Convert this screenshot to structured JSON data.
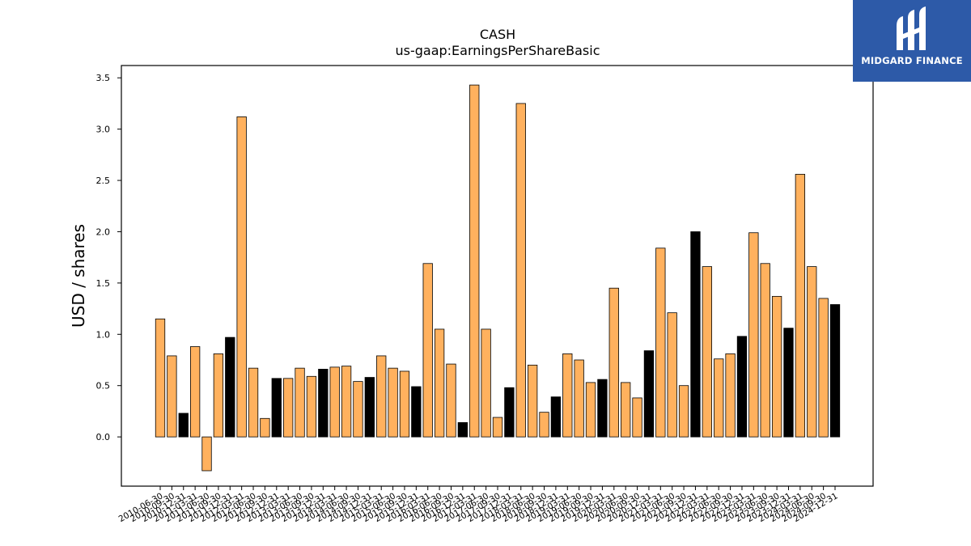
{
  "chart_data": {
    "type": "bar",
    "title": "CASH",
    "subtitle": "us-gaap:EarningsPerShareBasic",
    "xlabel": "",
    "ylabel": "USD / shares",
    "ylim": [
      -0.48,
      3.62
    ],
    "yticks": [
      0.0,
      0.5,
      1.0,
      1.5,
      2.0,
      2.5,
      3.0,
      3.5
    ],
    "grid": false,
    "legend": "none",
    "colors": {
      "orange": "#ffb15e",
      "black": "#000000",
      "edge": "#000000"
    },
    "categories": [
      "2010-06-30",
      "2010-09-30",
      "2010-12-31",
      "2011-03-31",
      "2011-06-30",
      "2011-09-30",
      "2011-12-31",
      "2012-03-31",
      "2012-06-30",
      "2012-09-30",
      "2012-12-31",
      "2013-03-31",
      "2013-06-30",
      "2013-09-30",
      "2013-12-31",
      "2014-03-31",
      "2014-06-30",
      "2014-09-30",
      "2014-12-31",
      "2015-03-31",
      "2015-06-30",
      "2015-09-30",
      "2015-12-31",
      "2016-03-31",
      "2016-06-30",
      "2016-09-30",
      "2016-12-31",
      "2017-03-31",
      "2017-06-30",
      "2017-09-30",
      "2017-12-31",
      "2018-03-31",
      "2018-06-30",
      "2018-09-30",
      "2018-12-31",
      "2019-03-31",
      "2019-06-30",
      "2019-09-30",
      "2019-12-31",
      "2020-03-31",
      "2020-06-30",
      "2020-09-30",
      "2020-12-31",
      "2021-03-31",
      "2021-06-30",
      "2021-09-30",
      "2021-12-31",
      "2022-03-31",
      "2022-06-30",
      "2022-09-30",
      "2022-12-31",
      "2023-03-31",
      "2023-06-30",
      "2023-09-30",
      "2023-12-31",
      "2024-03-31",
      "2024-06-30",
      "2024-09-30",
      "2024-12-31"
    ],
    "values": [
      1.15,
      0.79,
      0.23,
      0.88,
      -0.33,
      0.81,
      0.97,
      3.12,
      0.67,
      0.18,
      0.57,
      0.57,
      0.67,
      0.59,
      0.66,
      0.68,
      0.69,
      0.54,
      0.58,
      0.79,
      0.67,
      0.64,
      0.49,
      1.69,
      1.05,
      0.71,
      0.14,
      3.43,
      1.05,
      0.19,
      0.48,
      3.25,
      0.7,
      0.24,
      0.39,
      0.81,
      0.75,
      0.53,
      0.56,
      1.45,
      0.53,
      0.38,
      0.84,
      1.84,
      1.21,
      0.5,
      2.0,
      1.66,
      0.76,
      0.81,
      0.98,
      1.99,
      1.69,
      1.37,
      1.06,
      2.56,
      1.66,
      1.35,
      1.29
    ],
    "bar_colors": [
      "orange",
      "orange",
      "black",
      "orange",
      "orange",
      "orange",
      "black",
      "orange",
      "orange",
      "orange",
      "black",
      "orange",
      "orange",
      "orange",
      "black",
      "orange",
      "orange",
      "orange",
      "black",
      "orange",
      "orange",
      "orange",
      "black",
      "orange",
      "orange",
      "orange",
      "black",
      "orange",
      "orange",
      "orange",
      "black",
      "orange",
      "orange",
      "orange",
      "black",
      "orange",
      "orange",
      "orange",
      "black",
      "orange",
      "orange",
      "orange",
      "black",
      "orange",
      "orange",
      "orange",
      "black",
      "orange",
      "orange",
      "orange",
      "black",
      "orange",
      "orange",
      "orange",
      "black",
      "orange",
      "orange",
      "orange",
      "black"
    ]
  },
  "logo": {
    "text": "MIDGARD FINANCE",
    "icon": "midgard-logo-icon",
    "background": "#2d5aa8"
  }
}
